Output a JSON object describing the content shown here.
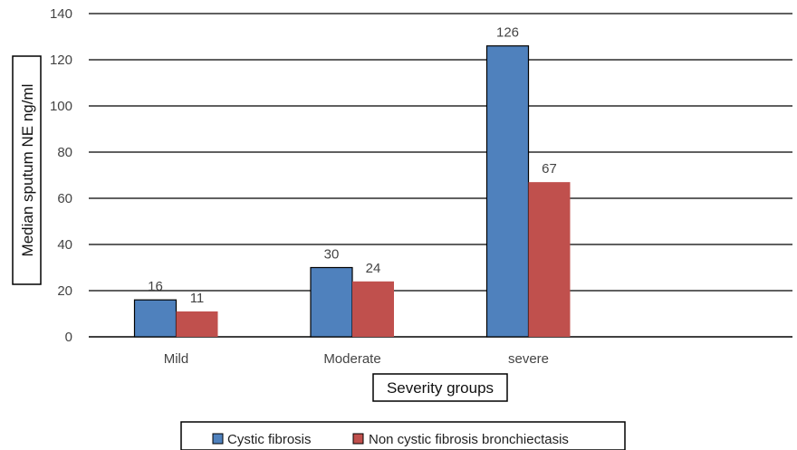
{
  "chart_data": {
    "type": "bar",
    "categories": [
      "Mild",
      "Moderate",
      "severe"
    ],
    "series": [
      {
        "name": "Cystic fibrosis",
        "values": [
          16,
          30,
          126
        ],
        "color": "#4F81BD"
      },
      {
        "name": "Non cystic fibrosis bronchiectasis",
        "values": [
          11,
          24,
          67
        ],
        "color": "#C0504D"
      }
    ],
    "xlabel": "Severity groups",
    "ylabel": "Median sputum NE ng/ml",
    "ylim": [
      0,
      140
    ],
    "yticks": [
      0,
      20,
      40,
      60,
      80,
      100,
      120,
      140
    ],
    "grid": true,
    "legend": "bottom",
    "data_labels": true
  }
}
